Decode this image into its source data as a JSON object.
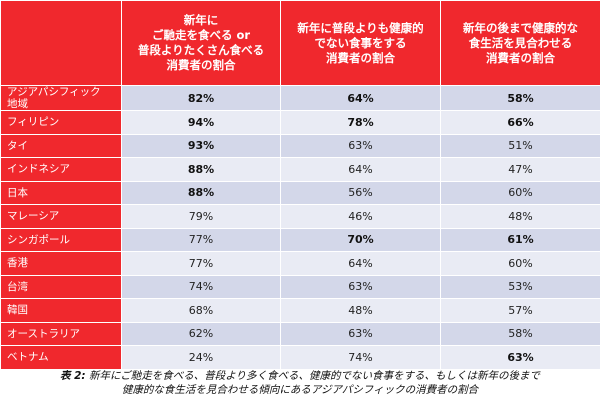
{
  "headers": [
    "新年に\nご馳走を食べる or\n普段よりたくさん食べる\n消費者の割合",
    "新年に普段よりも健康的\nでない食事をする\n消費者の割合",
    "新年の後まで健康的な\n食生活を見合わせる\n消費者の割合"
  ],
  "rows": [
    {
      "label": "アジアパシフィック\n地域",
      "values": [
        "82%",
        "64%",
        "58%"
      ],
      "bold": [
        true,
        true,
        true
      ]
    },
    {
      "label": "フィリピン",
      "values": [
        "94%",
        "78%",
        "66%"
      ],
      "bold": [
        true,
        true,
        true
      ]
    },
    {
      "label": "タイ",
      "values": [
        "93%",
        "63%",
        "51%"
      ],
      "bold": [
        true,
        false,
        false
      ]
    },
    {
      "label": "インドネシア",
      "values": [
        "88%",
        "64%",
        "47%"
      ],
      "bold": [
        true,
        false,
        false
      ]
    },
    {
      "label": "日本",
      "values": [
        "88%",
        "56%",
        "60%"
      ],
      "bold": [
        true,
        false,
        false
      ]
    },
    {
      "label": "マレーシア",
      "values": [
        "79%",
        "46%",
        "48%"
      ],
      "bold": [
        false,
        false,
        false
      ]
    },
    {
      "label": "シンガポール",
      "values": [
        "77%",
        "70%",
        "61%"
      ],
      "bold": [
        false,
        true,
        true
      ]
    },
    {
      "label": "香港",
      "values": [
        "77%",
        "64%",
        "60%"
      ],
      "bold": [
        false,
        false,
        false
      ]
    },
    {
      "label": "台湾",
      "values": [
        "74%",
        "63%",
        "53%"
      ],
      "bold": [
        false,
        false,
        false
      ]
    },
    {
      "label": "韓国",
      "values": [
        "68%",
        "48%",
        "57%"
      ],
      "bold": [
        false,
        false,
        false
      ]
    },
    {
      "label": "オーストラリア",
      "values": [
        "62%",
        "63%",
        "58%"
      ],
      "bold": [
        false,
        false,
        false
      ]
    },
    {
      "label": "ベトナム",
      "values": [
        "24%",
        "74%",
        "63%"
      ],
      "bold": [
        false,
        false,
        true
      ]
    }
  ],
  "caption": {
    "prefix": "表 2:",
    "line1": "新年にご馳走を食べる、普段より多く食べる、健康的でない食事をする、もしくは新年の後まで",
    "line2": "健康的な食生活を見合わせる傾向にあるアジアパシフィックの消費者の割合"
  },
  "colors": {
    "header_red": "#f0282d",
    "row_dark": "#d3d7e9",
    "row_light": "#e9ebf4"
  }
}
